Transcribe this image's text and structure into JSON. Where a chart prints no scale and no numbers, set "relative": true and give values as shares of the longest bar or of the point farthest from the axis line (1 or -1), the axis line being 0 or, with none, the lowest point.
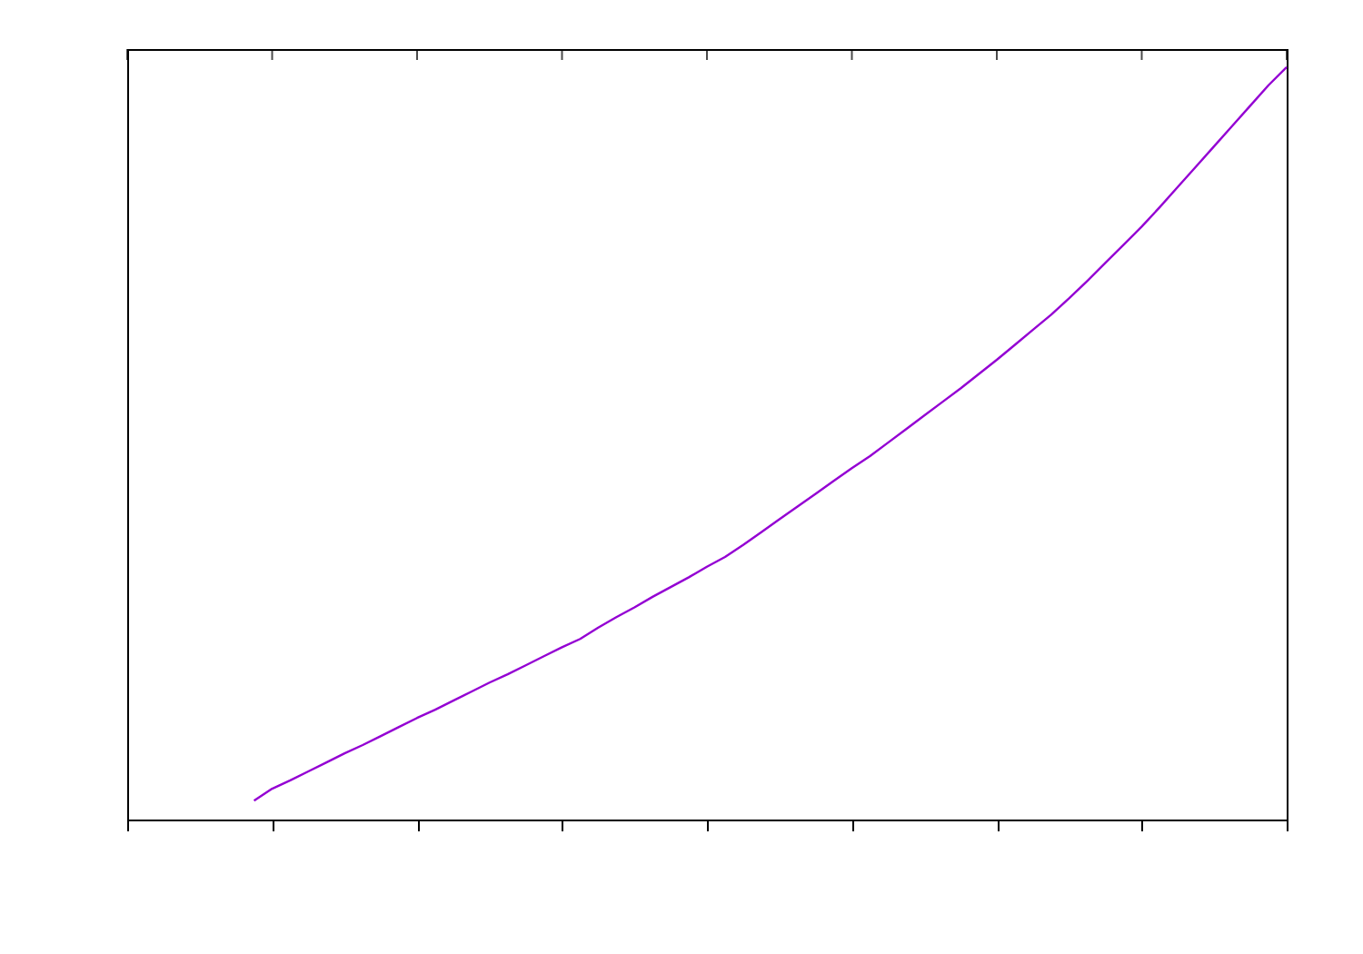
{
  "chart_data": {
    "type": "line",
    "relative": true,
    "grid": false,
    "categories": [
      null,
      null,
      null,
      null,
      null,
      null,
      null,
      null,
      null,
      null,
      null,
      null,
      null,
      null,
      null,
      null,
      null,
      null,
      null,
      null,
      null,
      null,
      null,
      null,
      null,
      null,
      null,
      null,
      null,
      null,
      null,
      null,
      null,
      null,
      null,
      null,
      null,
      null,
      null,
      null,
      null,
      null,
      null,
      null,
      null,
      null,
      null,
      null,
      null,
      null,
      null,
      null,
      null,
      null,
      null,
      null,
      null,
      null,
      null,
      null,
      null,
      null,
      null,
      null,
      null
    ],
    "series": [
      {
        "color": "#9400d3",
        "values": [
          null,
          null,
          null,
          null,
          null,
          null,
          null,
          0.025,
          0.041,
          0.052,
          0.064,
          0.076,
          0.088,
          0.099,
          0.111,
          0.123,
          0.135,
          0.146,
          0.158,
          0.17,
          0.182,
          0.193,
          0.205,
          0.217,
          0.229,
          0.24,
          0.255,
          0.269,
          0.282,
          0.296,
          0.309,
          0.322,
          0.336,
          0.349,
          0.365,
          0.382,
          0.399,
          0.416,
          0.433,
          0.45,
          0.467,
          0.483,
          0.501,
          0.519,
          0.537,
          0.555,
          0.573,
          0.592,
          0.611,
          0.631,
          0.651,
          0.671,
          0.693,
          0.716,
          0.74,
          0.764,
          0.788,
          0.814,
          0.841,
          0.868,
          0.895,
          0.922,
          0.949,
          0.976,
          1
        ]
      }
    ]
  }
}
